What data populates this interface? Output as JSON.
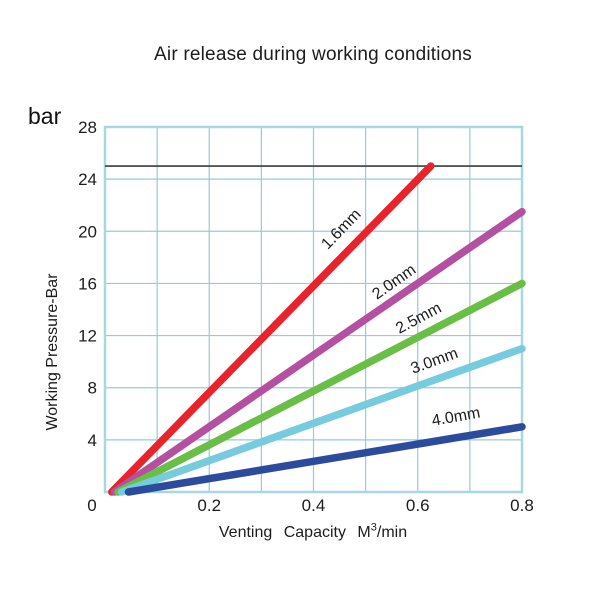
{
  "chart_data": {
    "type": "line",
    "title": "Air release during working conditions",
    "y_unit": "bar",
    "ylabel": "Working Pressure-Bar",
    "xlabel_parts": {
      "prefix": "Venting Capacity M",
      "sup": "3",
      "suffix": "/min"
    },
    "xlim": [
      0,
      0.8
    ],
    "ylim": [
      0,
      28
    ],
    "x_ticks": [
      0,
      0.2,
      0.4,
      0.6,
      0.8
    ],
    "y_ticks": [
      4,
      8,
      12,
      16,
      20,
      24,
      28
    ],
    "grid": {
      "x_step": 0.1,
      "y_step": 4,
      "on": true,
      "line_color": "#97cbd8",
      "border_color": "#a9d7e1"
    },
    "reference_line": {
      "y": 25,
      "color": "#3c3c3c",
      "meaning": "max working pressure line shown in chart"
    },
    "legend_position": "labels-on-lines",
    "series": [
      {
        "name": "1.6mm",
        "color": "#e8232b",
        "points": [
          [
            0.013,
            0
          ],
          [
            0.625,
            25
          ]
        ],
        "label": {
          "x": 0.46,
          "y": 19.9,
          "rotate": -46
        }
      },
      {
        "name": "2.0mm",
        "color": "#b4509f",
        "points": [
          [
            0.018,
            0
          ],
          [
            0.8,
            21.5
          ]
        ],
        "label": {
          "x": 0.56,
          "y": 15.8,
          "rotate": -35
        }
      },
      {
        "name": "2.5mm",
        "color": "#69bf45",
        "points": [
          [
            0.025,
            0
          ],
          [
            0.8,
            16
          ]
        ],
        "label": {
          "x": 0.606,
          "y": 13.0,
          "rotate": -28
        }
      },
      {
        "name": "3.0mm",
        "color": "#76ccdd",
        "points": [
          [
            0.032,
            0
          ],
          [
            0.8,
            11
          ]
        ],
        "label": {
          "x": 0.635,
          "y": 9.7,
          "rotate": -20
        }
      },
      {
        "name": "4.0mm",
        "color": "#2c4b9c",
        "points": [
          [
            0.045,
            0
          ],
          [
            0.8,
            5
          ]
        ],
        "label": {
          "x": 0.675,
          "y": 5.4,
          "rotate": -10
        }
      }
    ]
  }
}
